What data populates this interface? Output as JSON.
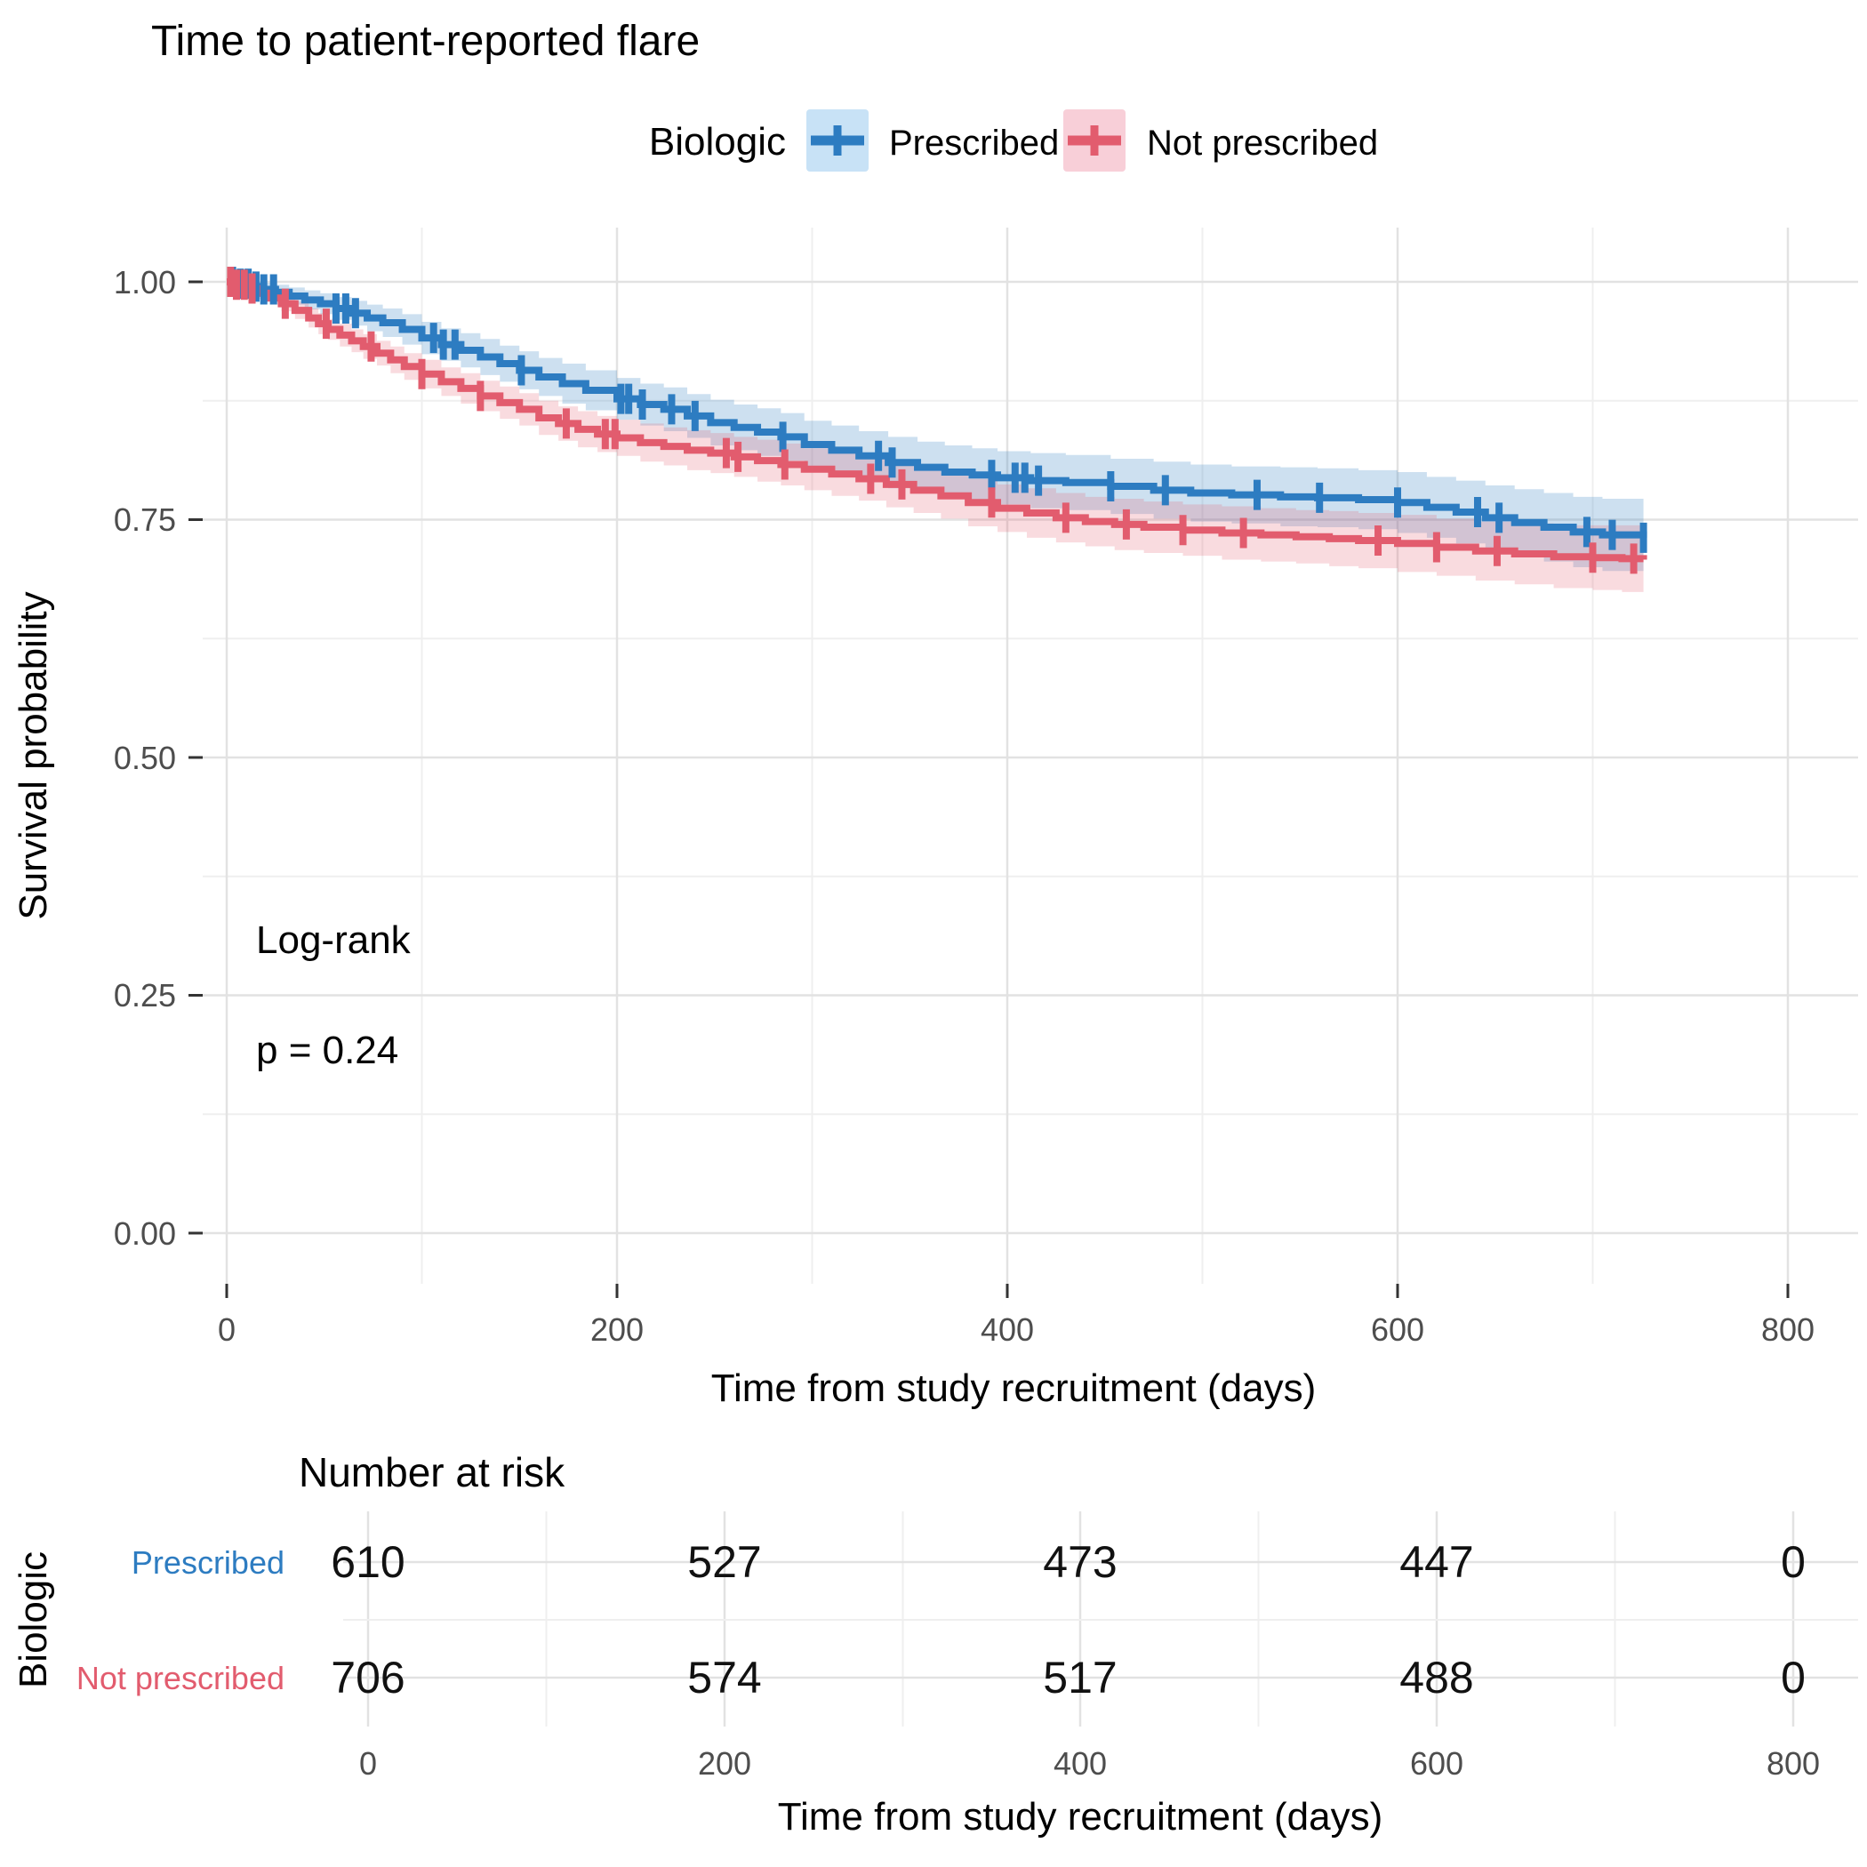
{
  "title": "Time to patient-reported flare",
  "legend": {
    "title": "Biologic",
    "items": [
      {
        "label": "Prescribed",
        "color": "#2D7CC1",
        "fill": "#C8E2F6"
      },
      {
        "label": "Not prescribed",
        "color": "#E25C6E",
        "fill": "#F8CFD8"
      }
    ]
  },
  "annotation": {
    "line1": "Log-rank",
    "line2": "p = 0.24"
  },
  "axes": {
    "x_title": "Time from study recruitment (days)",
    "y_title": "Survival probability",
    "x_ticks": [
      "0",
      "200",
      "400",
      "600",
      "800"
    ],
    "y_ticks": [
      "1.00",
      "0.75",
      "0.50",
      "0.25",
      "0.00"
    ]
  },
  "risk_table": {
    "heading": "Number at risk",
    "group_title": "Biologic",
    "x_title": "Time from study recruitment (days)",
    "x_ticks": [
      "0",
      "200",
      "400",
      "600",
      "800"
    ],
    "rows": [
      {
        "label": "Prescribed",
        "color": "#2D7CC1",
        "values": [
          "610",
          "527",
          "473",
          "447",
          "0"
        ]
      },
      {
        "label": "Not prescribed",
        "color": "#E25C6E",
        "values": [
          "706",
          "574",
          "517",
          "488",
          "0"
        ]
      }
    ]
  },
  "chart_data": {
    "type": "line",
    "subtype": "kaplan-meier-step",
    "title": "Time to patient-reported flare",
    "xlabel": "Time from study recruitment (days)",
    "ylabel": "Survival probability",
    "xlim": [
      0,
      800
    ],
    "ylim": [
      0,
      1
    ],
    "x_major_ticks": [
      0,
      200,
      400,
      600,
      800
    ],
    "x_minor_ticks": [
      100,
      300,
      500,
      700
    ],
    "y_major_ticks": [
      0,
      0.25,
      0.5,
      0.75,
      1.0
    ],
    "y_minor_ticks": [
      0.125,
      0.375,
      0.625,
      0.875
    ],
    "grid": true,
    "legend_position": "top",
    "annotation": "Log-rank p = 0.24",
    "series": [
      {
        "name": "Prescribed",
        "color": "#2D7CC1",
        "band_fill": "#2D7CC1",
        "band_opacity": 0.24,
        "points": [
          [
            0,
            1.0,
            0.004
          ],
          [
            6,
            0.998,
            0.005
          ],
          [
            12,
            0.995,
            0.006
          ],
          [
            18,
            0.992,
            0.007
          ],
          [
            25,
            0.989,
            0.008
          ],
          [
            32,
            0.985,
            0.009
          ],
          [
            40,
            0.981,
            0.01
          ],
          [
            48,
            0.977,
            0.011
          ],
          [
            56,
            0.972,
            0.012
          ],
          [
            64,
            0.967,
            0.013
          ],
          [
            72,
            0.962,
            0.014
          ],
          [
            80,
            0.957,
            0.015
          ],
          [
            90,
            0.95,
            0.016
          ],
          [
            100,
            0.941,
            0.017
          ],
          [
            110,
            0.934,
            0.017
          ],
          [
            120,
            0.928,
            0.018
          ],
          [
            130,
            0.921,
            0.019
          ],
          [
            140,
            0.914,
            0.019
          ],
          [
            150,
            0.907,
            0.02
          ],
          [
            160,
            0.9,
            0.02
          ],
          [
            172,
            0.893,
            0.021
          ],
          [
            184,
            0.886,
            0.021
          ],
          [
            200,
            0.877,
            0.022
          ],
          [
            212,
            0.871,
            0.022
          ],
          [
            224,
            0.866,
            0.023
          ],
          [
            236,
            0.859,
            0.023
          ],
          [
            248,
            0.852,
            0.024
          ],
          [
            260,
            0.847,
            0.024
          ],
          [
            272,
            0.842,
            0.025
          ],
          [
            284,
            0.837,
            0.025
          ],
          [
            296,
            0.829,
            0.025
          ],
          [
            310,
            0.823,
            0.026
          ],
          [
            324,
            0.817,
            0.026
          ],
          [
            339,
            0.81,
            0.027
          ],
          [
            354,
            0.805,
            0.027
          ],
          [
            368,
            0.8,
            0.028
          ],
          [
            382,
            0.797,
            0.028
          ],
          [
            395,
            0.794,
            0.028
          ],
          [
            412,
            0.791,
            0.029
          ],
          [
            430,
            0.789,
            0.029
          ],
          [
            453,
            0.785,
            0.029
          ],
          [
            475,
            0.781,
            0.03
          ],
          [
            494,
            0.778,
            0.03
          ],
          [
            515,
            0.776,
            0.03
          ],
          [
            540,
            0.774,
            0.031
          ],
          [
            559,
            0.773,
            0.031
          ],
          [
            580,
            0.771,
            0.031
          ],
          [
            600,
            0.768,
            0.032
          ],
          [
            615,
            0.763,
            0.032
          ],
          [
            630,
            0.758,
            0.033
          ],
          [
            645,
            0.752,
            0.034
          ],
          [
            660,
            0.747,
            0.035
          ],
          [
            675,
            0.742,
            0.036
          ],
          [
            690,
            0.737,
            0.037
          ],
          [
            705,
            0.734,
            0.038
          ],
          [
            726,
            0.731,
            0.039
          ]
        ],
        "censor_times": [
          3,
          7,
          11,
          15,
          19,
          24,
          56,
          61,
          66,
          106,
          111,
          117,
          151,
          202,
          206,
          213,
          228,
          240,
          285,
          334,
          341,
          392,
          404,
          409,
          416,
          453,
          481,
          528,
          560,
          600,
          641,
          652,
          697,
          710,
          726
        ]
      },
      {
        "name": "Not prescribed",
        "color": "#E25C6E",
        "band_fill": "#E25C6E",
        "band_opacity": 0.22,
        "points": [
          [
            0,
            1.0,
            0.003
          ],
          [
            5,
            0.997,
            0.004
          ],
          [
            10,
            0.993,
            0.005
          ],
          [
            16,
            0.988,
            0.006
          ],
          [
            22,
            0.983,
            0.007
          ],
          [
            28,
            0.977,
            0.008
          ],
          [
            35,
            0.97,
            0.009
          ],
          [
            42,
            0.962,
            0.01
          ],
          [
            47,
            0.956,
            0.011
          ],
          [
            52,
            0.95,
            0.011
          ],
          [
            58,
            0.944,
            0.012
          ],
          [
            64,
            0.938,
            0.012
          ],
          [
            70,
            0.932,
            0.013
          ],
          [
            77,
            0.925,
            0.013
          ],
          [
            84,
            0.918,
            0.014
          ],
          [
            91,
            0.911,
            0.014
          ],
          [
            100,
            0.903,
            0.015
          ],
          [
            110,
            0.895,
            0.015
          ],
          [
            120,
            0.888,
            0.016
          ],
          [
            130,
            0.88,
            0.016
          ],
          [
            140,
            0.873,
            0.017
          ],
          [
            150,
            0.866,
            0.017
          ],
          [
            160,
            0.857,
            0.018
          ],
          [
            170,
            0.851,
            0.018
          ],
          [
            180,
            0.845,
            0.019
          ],
          [
            190,
            0.84,
            0.019
          ],
          [
            200,
            0.836,
            0.019
          ],
          [
            212,
            0.831,
            0.02
          ],
          [
            224,
            0.827,
            0.02
          ],
          [
            236,
            0.823,
            0.021
          ],
          [
            248,
            0.82,
            0.021
          ],
          [
            260,
            0.816,
            0.021
          ],
          [
            272,
            0.812,
            0.022
          ],
          [
            284,
            0.808,
            0.022
          ],
          [
            296,
            0.803,
            0.022
          ],
          [
            310,
            0.798,
            0.023
          ],
          [
            324,
            0.793,
            0.023
          ],
          [
            338,
            0.787,
            0.024
          ],
          [
            352,
            0.781,
            0.024
          ],
          [
            366,
            0.775,
            0.024
          ],
          [
            380,
            0.768,
            0.025
          ],
          [
            395,
            0.762,
            0.025
          ],
          [
            410,
            0.757,
            0.026
          ],
          [
            425,
            0.752,
            0.026
          ],
          [
            440,
            0.748,
            0.026
          ],
          [
            455,
            0.745,
            0.027
          ],
          [
            470,
            0.742,
            0.027
          ],
          [
            490,
            0.739,
            0.027
          ],
          [
            510,
            0.736,
            0.028
          ],
          [
            530,
            0.734,
            0.028
          ],
          [
            548,
            0.732,
            0.028
          ],
          [
            565,
            0.73,
            0.029
          ],
          [
            580,
            0.728,
            0.029
          ],
          [
            600,
            0.725,
            0.03
          ],
          [
            620,
            0.721,
            0.03
          ],
          [
            640,
            0.717,
            0.031
          ],
          [
            660,
            0.714,
            0.032
          ],
          [
            680,
            0.711,
            0.033
          ],
          [
            700,
            0.71,
            0.034
          ],
          [
            715,
            0.709,
            0.035
          ],
          [
            726,
            0.708,
            0.036
          ]
        ],
        "censor_times": [
          2,
          5,
          9,
          13,
          30,
          51,
          74,
          100,
          130,
          174,
          194,
          199,
          256,
          262,
          286,
          330,
          346,
          392,
          430,
          461,
          490,
          521,
          590,
          620,
          651,
          700,
          721
        ]
      }
    ],
    "risk_table": {
      "times": [
        0,
        200,
        400,
        600,
        800
      ],
      "groups": [
        {
          "name": "Prescribed",
          "at_risk": [
            610,
            527,
            473,
            447,
            0
          ]
        },
        {
          "name": "Not prescribed",
          "at_risk": [
            706,
            574,
            517,
            488,
            0
          ]
        }
      ]
    }
  }
}
